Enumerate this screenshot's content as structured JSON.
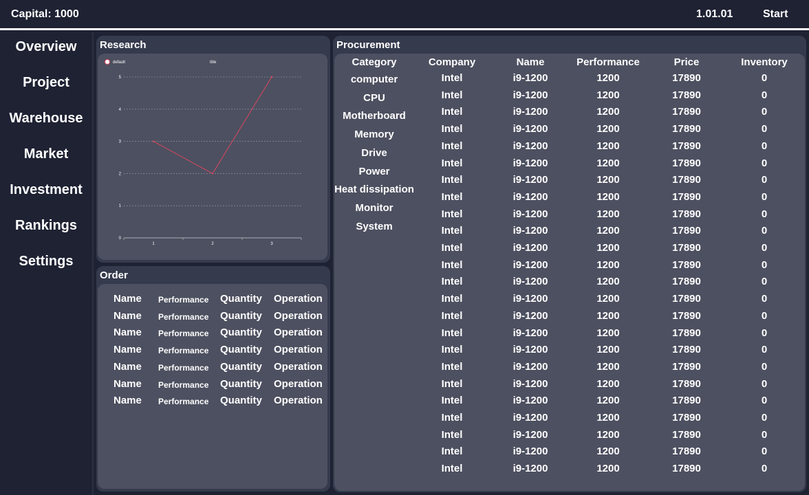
{
  "header": {
    "capital": "Capital: 1000",
    "version": "1.01.01",
    "start_label": "Start"
  },
  "sidebar": {
    "items": [
      {
        "label": "Overview"
      },
      {
        "label": "Project"
      },
      {
        "label": "Warehouse"
      },
      {
        "label": "Market"
      },
      {
        "label": "Investment"
      },
      {
        "label": "Rankings"
      },
      {
        "label": "Settings"
      }
    ]
  },
  "research": {
    "title": "Research",
    "chart_data": {
      "type": "line",
      "title": "title",
      "categories": [
        "1",
        "2",
        "3"
      ],
      "series": [
        {
          "name": "default",
          "values": [
            3,
            2,
            5
          ],
          "color": "#d9475f"
        }
      ],
      "ylim": [
        0,
        5
      ],
      "yticks": [
        "0",
        "1",
        "2",
        "3",
        "4",
        "5"
      ],
      "grid": true,
      "legend": "top-left"
    }
  },
  "order": {
    "title": "Order",
    "rows": [
      {
        "name": "Name",
        "performance": "Performance",
        "quantity": "Quantity",
        "operation": "Operation"
      },
      {
        "name": "Name",
        "performance": "Performance",
        "quantity": "Quantity",
        "operation": "Operation"
      },
      {
        "name": "Name",
        "performance": "Performance",
        "quantity": "Quantity",
        "operation": "Operation"
      },
      {
        "name": "Name",
        "performance": "Performance",
        "quantity": "Quantity",
        "operation": "Operation"
      },
      {
        "name": "Name",
        "performance": "Performance",
        "quantity": "Quantity",
        "operation": "Operation"
      },
      {
        "name": "Name",
        "performance": "Performance",
        "quantity": "Quantity",
        "operation": "Operation"
      },
      {
        "name": "Name",
        "performance": "Performance",
        "quantity": "Quantity",
        "operation": "Operation"
      }
    ]
  },
  "procurement": {
    "title": "Procurement",
    "headers": {
      "category": "Category",
      "company": "Company",
      "name": "Name",
      "performance": "Performance",
      "price": "Price",
      "inventory": "Inventory"
    },
    "categories": [
      "computer",
      "CPU",
      "Motherboard",
      "Memory",
      "Drive",
      "Power",
      "Heat dissipation",
      "Monitor",
      "System"
    ],
    "rows": [
      {
        "company": "Intel",
        "name": "i9-1200",
        "performance": "1200",
        "price": "17890",
        "inventory": "0"
      },
      {
        "company": "Intel",
        "name": "i9-1200",
        "performance": "1200",
        "price": "17890",
        "inventory": "0"
      },
      {
        "company": "Intel",
        "name": "i9-1200",
        "performance": "1200",
        "price": "17890",
        "inventory": "0"
      },
      {
        "company": "Intel",
        "name": "i9-1200",
        "performance": "1200",
        "price": "17890",
        "inventory": "0"
      },
      {
        "company": "Intel",
        "name": "i9-1200",
        "performance": "1200",
        "price": "17890",
        "inventory": "0"
      },
      {
        "company": "Intel",
        "name": "i9-1200",
        "performance": "1200",
        "price": "17890",
        "inventory": "0"
      },
      {
        "company": "Intel",
        "name": "i9-1200",
        "performance": "1200",
        "price": "17890",
        "inventory": "0"
      },
      {
        "company": "Intel",
        "name": "i9-1200",
        "performance": "1200",
        "price": "17890",
        "inventory": "0"
      },
      {
        "company": "Intel",
        "name": "i9-1200",
        "performance": "1200",
        "price": "17890",
        "inventory": "0"
      },
      {
        "company": "Intel",
        "name": "i9-1200",
        "performance": "1200",
        "price": "17890",
        "inventory": "0"
      },
      {
        "company": "Intel",
        "name": "i9-1200",
        "performance": "1200",
        "price": "17890",
        "inventory": "0"
      },
      {
        "company": "Intel",
        "name": "i9-1200",
        "performance": "1200",
        "price": "17890",
        "inventory": "0"
      },
      {
        "company": "Intel",
        "name": "i9-1200",
        "performance": "1200",
        "price": "17890",
        "inventory": "0"
      },
      {
        "company": "Intel",
        "name": "i9-1200",
        "performance": "1200",
        "price": "17890",
        "inventory": "0"
      },
      {
        "company": "Intel",
        "name": "i9-1200",
        "performance": "1200",
        "price": "17890",
        "inventory": "0"
      },
      {
        "company": "Intel",
        "name": "i9-1200",
        "performance": "1200",
        "price": "17890",
        "inventory": "0"
      },
      {
        "company": "Intel",
        "name": "i9-1200",
        "performance": "1200",
        "price": "17890",
        "inventory": "0"
      },
      {
        "company": "Intel",
        "name": "i9-1200",
        "performance": "1200",
        "price": "17890",
        "inventory": "0"
      },
      {
        "company": "Intel",
        "name": "i9-1200",
        "performance": "1200",
        "price": "17890",
        "inventory": "0"
      },
      {
        "company": "Intel",
        "name": "i9-1200",
        "performance": "1200",
        "price": "17890",
        "inventory": "0"
      },
      {
        "company": "Intel",
        "name": "i9-1200",
        "performance": "1200",
        "price": "17890",
        "inventory": "0"
      },
      {
        "company": "Intel",
        "name": "i9-1200",
        "performance": "1200",
        "price": "17890",
        "inventory": "0"
      },
      {
        "company": "Intel",
        "name": "i9-1200",
        "performance": "1200",
        "price": "17890",
        "inventory": "0"
      },
      {
        "company": "Intel",
        "name": "i9-1200",
        "performance": "1200",
        "price": "17890",
        "inventory": "0"
      }
    ]
  }
}
